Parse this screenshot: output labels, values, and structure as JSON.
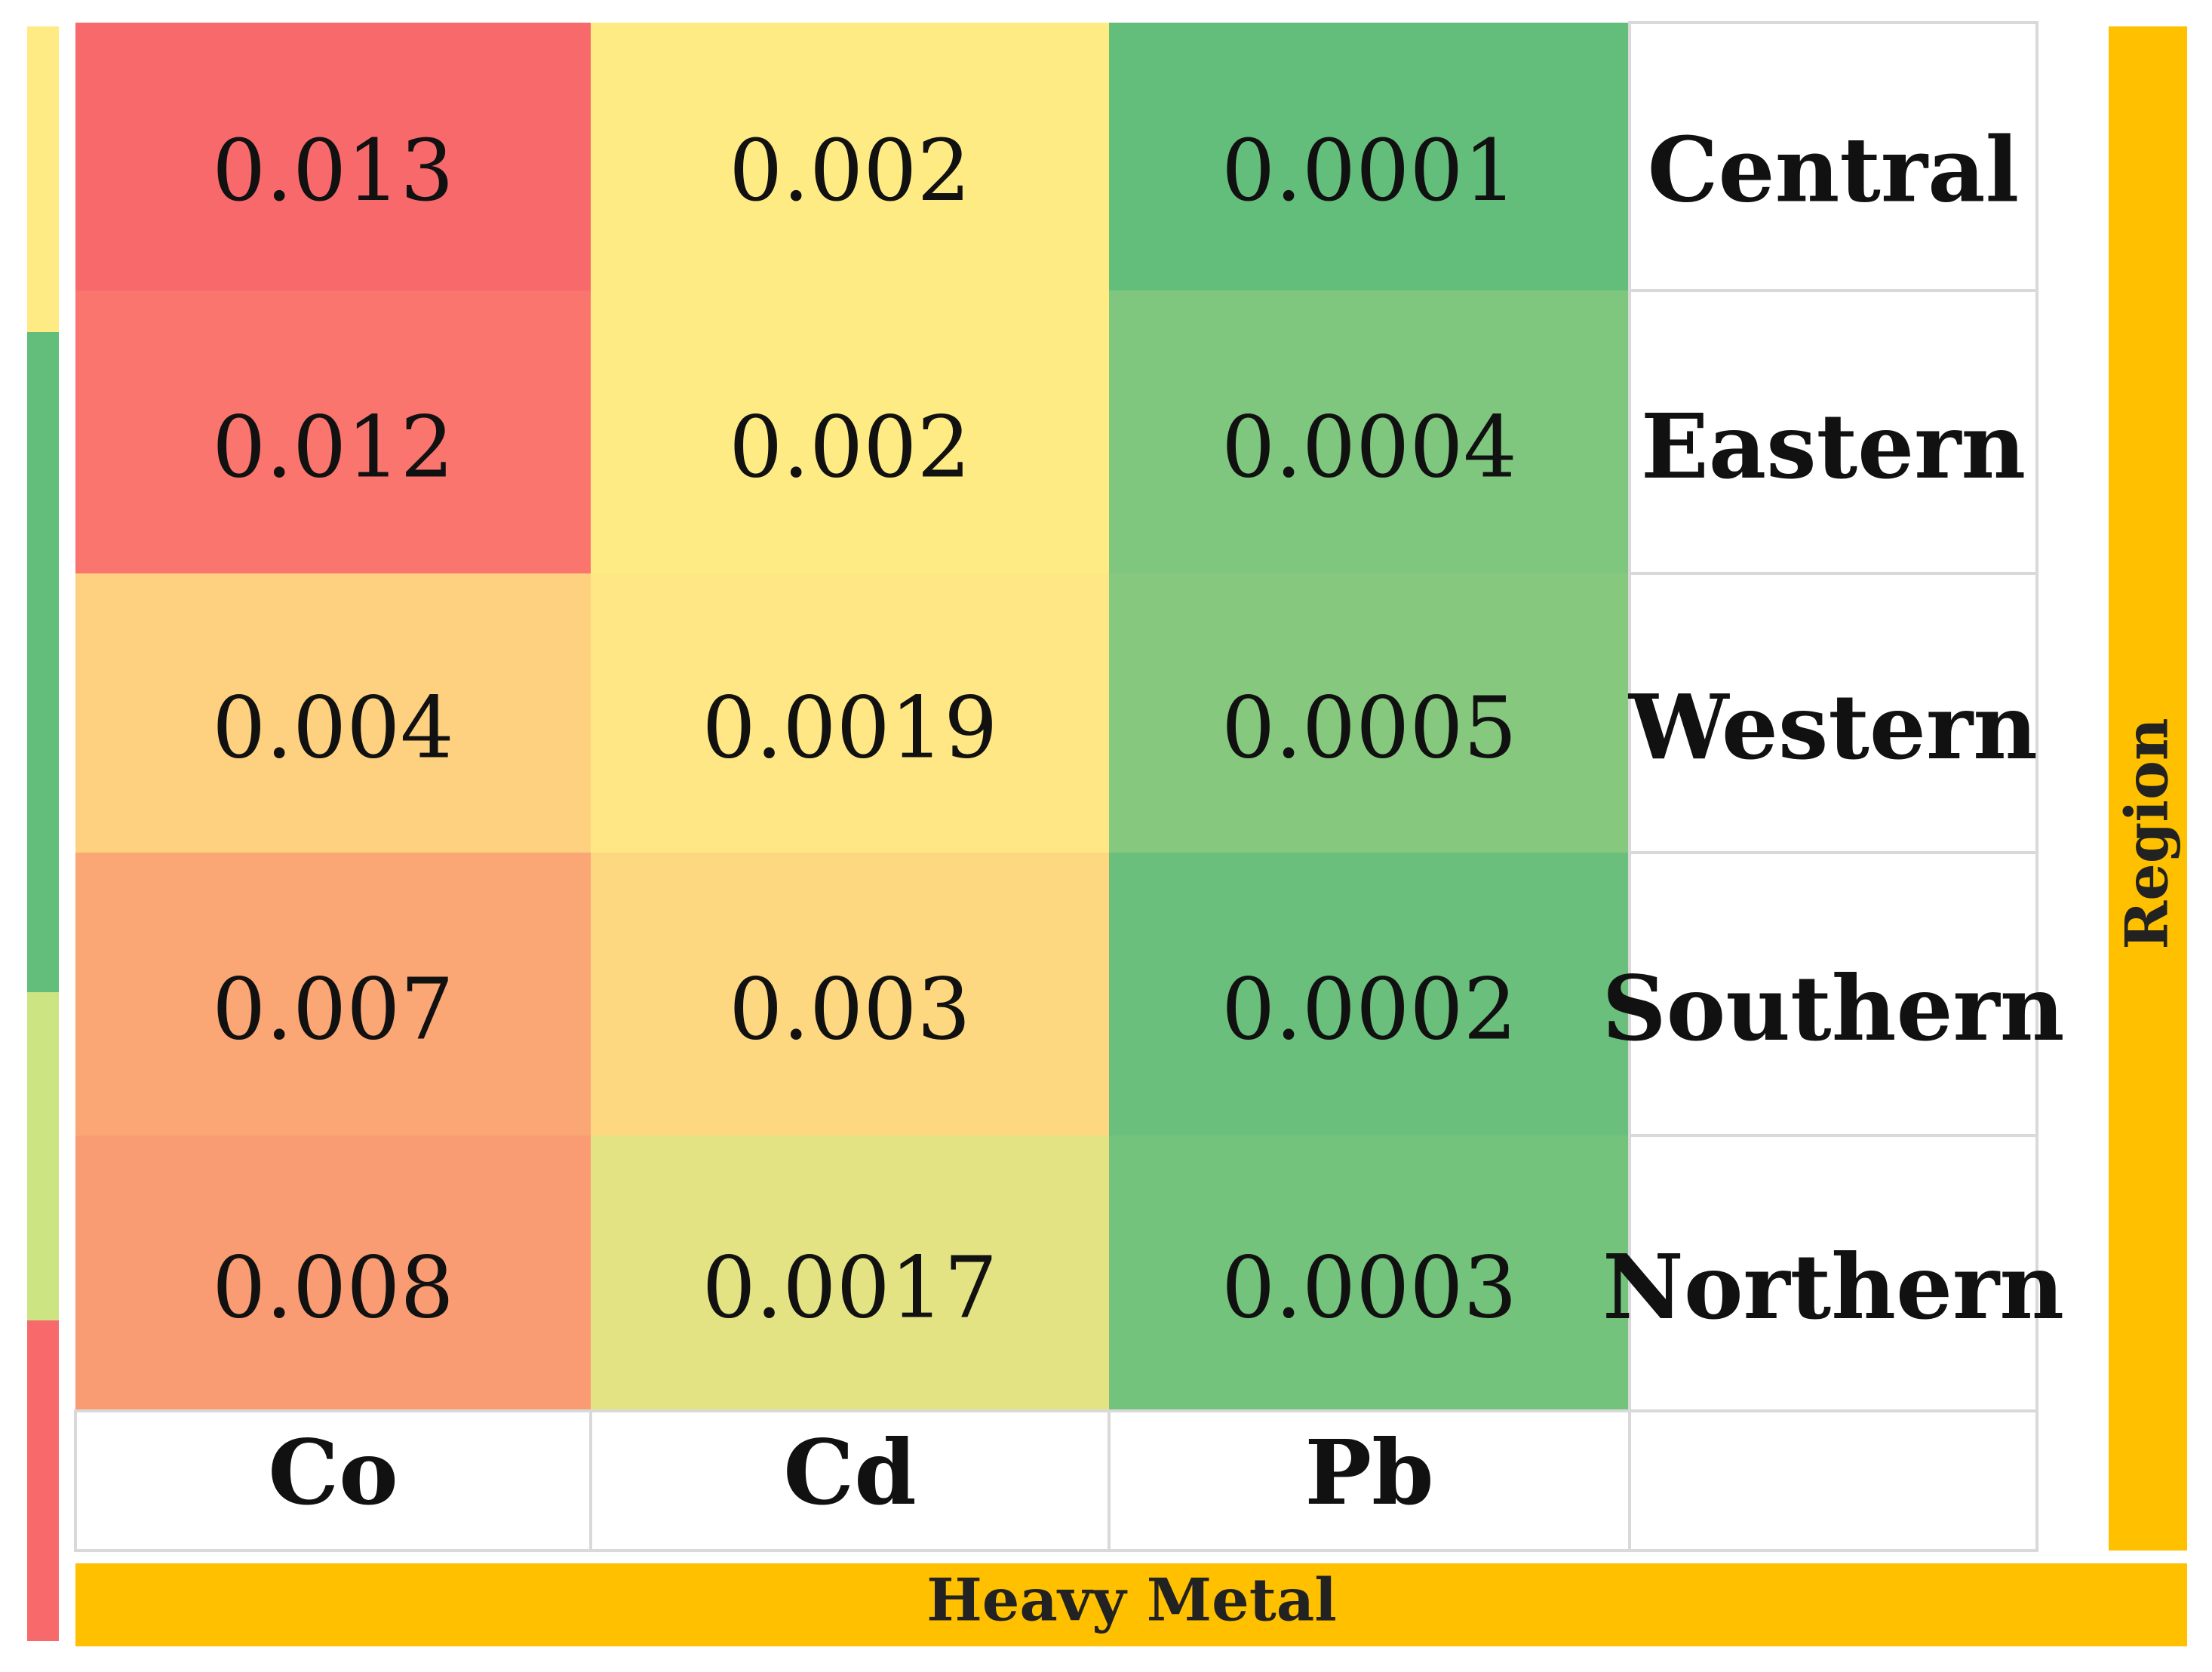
{
  "chart_data": {
    "type": "heatmap",
    "rows": [
      "Central",
      "Eastern",
      "Western",
      "Southern",
      "Northern"
    ],
    "columns": [
      "Co",
      "Cd",
      "Pb"
    ],
    "values": [
      [
        "0.013",
        "0.002",
        "0.0001"
      ],
      [
        "0.012",
        "0.002",
        "0.0004"
      ],
      [
        "0.004",
        "0.0019",
        "0.0005"
      ],
      [
        "0.007",
        "0.003",
        "0.0002"
      ],
      [
        "0.008",
        "0.0017",
        "0.0003"
      ]
    ],
    "cell_colors": [
      [
        "#f8696b",
        "#ffeb84",
        "#63be7b"
      ],
      [
        "#f9756e",
        "#ffeb84",
        "#7fc77e"
      ],
      [
        "#fdd17f",
        "#fee784",
        "#86c97e"
      ],
      [
        "#faa675",
        "#fdd880",
        "#6bbf7c"
      ],
      [
        "#fa9c73",
        "#e4e383",
        "#73c37c"
      ]
    ],
    "xlabel": "Heavy Metal",
    "ylabel": "Region",
    "legend_colors": [
      "#ffeb84",
      "#63be7b",
      "#cce582",
      "#f8696b"
    ],
    "axis_band_color": "#ffc000"
  }
}
